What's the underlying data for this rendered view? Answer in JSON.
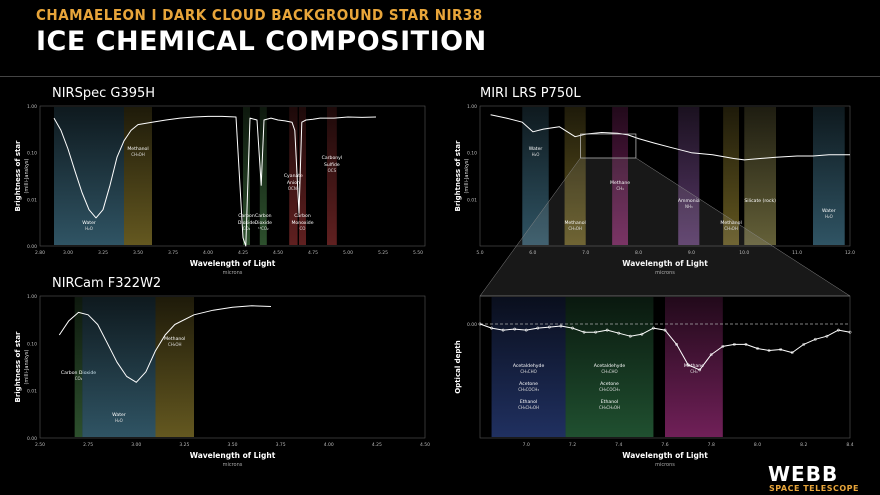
{
  "header": {
    "supertitle": "CHAMAELEON I DARK CLOUD BACKGROUND STAR NIR38",
    "title": "ICE CHEMICAL COMPOSITION"
  },
  "logo": {
    "name": "WEBB",
    "sub": "SPACE TELESCOPE"
  },
  "colors": {
    "water": "#5fa8c8",
    "methane": "#c8b040",
    "co2": "#5aa05a",
    "ammonia": "#b070d0",
    "silicate": "#c8c070",
    "red": "#c04040",
    "pink": "#e040b0",
    "blue": "#4060c0",
    "green": "#40a060"
  },
  "chart_data": [
    {
      "id": "nirspec",
      "type": "line",
      "title": "NIRSpec G395H",
      "xlabel": "Wavelength of Light",
      "xunit": "microns",
      "ylabel": "Brightness of star",
      "yunit": "(milli-Janskys)",
      "xlim": [
        2.8,
        5.55
      ],
      "ylim_log": [
        0.001,
        1
      ],
      "yscale": "log",
      "xticks": [
        "2.80",
        "3.00",
        "3.25",
        "3.50",
        "3.75",
        "4.00",
        "4.25",
        "4.50",
        "4.75",
        "5.00",
        "5.25",
        "5.50"
      ],
      "xtick_vals": [
        2.8,
        3.0,
        3.25,
        3.5,
        3.75,
        4.0,
        4.25,
        4.5,
        4.75,
        5.0,
        5.25,
        5.5
      ],
      "yticks": [
        "1.00",
        "0.10",
        "0.01",
        "0.00"
      ],
      "bands": [
        {
          "x0": 2.9,
          "x1": 3.4,
          "color": "#5fa8c8",
          "label": "Water",
          "sub": "H₂O",
          "pos": "bottom"
        },
        {
          "x0": 3.4,
          "x1": 3.6,
          "color": "#c8b040",
          "label": "Methanol",
          "sub": "CH₃OH",
          "pos": "top"
        },
        {
          "x0": 4.25,
          "x1": 4.3,
          "color": "#5aa05a",
          "label": "Carbon Dioxide",
          "sub": "CO₂",
          "pos": "bottom"
        },
        {
          "x0": 4.37,
          "x1": 4.42,
          "color": "#5aa05a",
          "label": "Carbon Dioxide",
          "sub": "¹³CO₂",
          "pos": "bottom"
        },
        {
          "x0": 4.58,
          "x1": 4.64,
          "color": "#c04040",
          "label": "Cyanate Anion",
          "sub": "OCN⁻",
          "pos": "mid"
        },
        {
          "x0": 4.65,
          "x1": 4.7,
          "color": "#c04040",
          "label": "Carbon Monoxide",
          "sub": "CO",
          "pos": "bottom"
        },
        {
          "x0": 4.85,
          "x1": 4.92,
          "color": "#c04040",
          "label": "Carbonyl Sulfide",
          "sub": "OCS",
          "pos": "upper"
        }
      ],
      "series": [
        {
          "x": [
            2.9,
            2.95,
            3.0,
            3.05,
            3.1,
            3.15,
            3.2,
            3.25,
            3.3,
            3.35,
            3.4,
            3.45,
            3.5,
            3.6,
            3.7,
            3.8,
            3.9,
            4.0,
            4.1,
            4.2,
            4.25,
            4.27,
            4.3,
            4.35,
            4.38,
            4.4,
            4.45,
            4.5,
            4.55,
            4.6,
            4.62,
            4.65,
            4.67,
            4.7,
            4.75,
            4.8,
            4.9,
            5.0,
            5.1,
            5.2
          ],
          "y": [
            0.55,
            0.3,
            0.12,
            0.04,
            0.014,
            0.006,
            0.004,
            0.006,
            0.02,
            0.08,
            0.18,
            0.3,
            0.4,
            0.45,
            0.5,
            0.55,
            0.58,
            0.6,
            0.6,
            0.58,
            0.0015,
            0.001,
            0.55,
            0.5,
            0.02,
            0.5,
            0.55,
            0.5,
            0.48,
            0.45,
            0.3,
            0.005,
            0.45,
            0.5,
            0.52,
            0.55,
            0.55,
            0.58,
            0.57,
            0.58
          ]
        }
      ]
    },
    {
      "id": "nircam",
      "type": "line",
      "title": "NIRCam F322W2",
      "xlabel": "Wavelength of Light",
      "xunit": "microns",
      "ylabel": "Brightness of star",
      "yunit": "(milli-Janskys)",
      "xlim": [
        2.5,
        4.5
      ],
      "yscale": "log",
      "xtick_vals": [
        2.5,
        2.75,
        3.0,
        3.25,
        3.5,
        3.75,
        4.0,
        4.25,
        4.5
      ],
      "xticks": [
        "2.50",
        "2.75",
        "3.00",
        "3.25",
        "3.50",
        "3.75",
        "4.00",
        "4.25",
        "4.50"
      ],
      "yticks": [
        "1.00",
        "0.10",
        "0.01",
        "0.00"
      ],
      "bands": [
        {
          "x0": 2.68,
          "x1": 2.72,
          "color": "#5aa05a",
          "label": "Carbon Dioxide",
          "sub": "CO₂",
          "pos": "mid"
        },
        {
          "x0": 2.72,
          "x1": 3.1,
          "color": "#5fa8c8",
          "label": "Water",
          "sub": "H₂O",
          "pos": "bottom"
        },
        {
          "x0": 3.1,
          "x1": 3.3,
          "color": "#c8b040",
          "label": "Methanol",
          "sub": "CH₃OH",
          "pos": "top"
        }
      ],
      "series": [
        {
          "x": [
            2.6,
            2.65,
            2.7,
            2.75,
            2.8,
            2.85,
            2.9,
            2.95,
            3.0,
            3.05,
            3.1,
            3.15,
            3.2,
            3.3,
            3.4,
            3.5,
            3.6,
            3.7
          ],
          "y": [
            0.15,
            0.3,
            0.45,
            0.4,
            0.25,
            0.1,
            0.04,
            0.02,
            0.015,
            0.025,
            0.07,
            0.15,
            0.25,
            0.4,
            0.5,
            0.58,
            0.62,
            0.6
          ]
        }
      ]
    },
    {
      "id": "miri",
      "type": "line",
      "title": "MIRI LRS P750L",
      "xlabel": "Wavelength of Light",
      "xunit": "microns",
      "ylabel": "Brightness of star",
      "yunit": "(milli-Janskys)",
      "xlim": [
        5,
        12
      ],
      "yscale": "log",
      "xtick_vals": [
        5,
        5.5,
        6,
        6.5,
        7,
        7.5,
        8,
        8.5,
        9,
        9.5,
        10,
        10.5,
        11,
        11.5,
        12
      ],
      "xticks": [
        "5.0",
        "",
        "6.0",
        "",
        "7.0",
        "",
        "8.0",
        "",
        "9.0",
        "",
        "10.0",
        "",
        "11.0",
        "",
        "12.0"
      ],
      "yticks": [
        "1.00",
        "0.10",
        "0.01"
      ],
      "bands": [
        {
          "x0": 5.8,
          "x1": 6.3,
          "color": "#5fa8c8",
          "label": "Water",
          "sub": "H₂O",
          "pos": "top"
        },
        {
          "x0": 6.6,
          "x1": 7.0,
          "color": "#c8b040",
          "label": "Methanol",
          "sub": "CH₃OH",
          "pos": "bottom"
        },
        {
          "x0": 7.5,
          "x1": 7.8,
          "color": "#e040b0",
          "label": "Methane",
          "sub": "CH₄",
          "pos": "mid"
        },
        {
          "x0": 8.75,
          "x1": 9.15,
          "color": "#b070d0",
          "label": "Ammonia",
          "sub": "NH₃",
          "pos": "mid2"
        },
        {
          "x0": 9.6,
          "x1": 9.9,
          "color": "#c8b040",
          "label": "Methanol",
          "sub": "CH₃OH",
          "pos": "bottom"
        },
        {
          "x0": 10.0,
          "x1": 10.6,
          "color": "#c8c070",
          "label": "Silicate (rock)",
          "sub": "",
          "pos": "mid2"
        },
        {
          "x0": 11.3,
          "x1": 11.9,
          "color": "#5fa8c8",
          "label": "Water",
          "sub": "H₂O",
          "pos": "mid3"
        }
      ],
      "series": [
        {
          "x": [
            5.2,
            5.5,
            5.8,
            6.0,
            6.2,
            6.5,
            6.8,
            7.0,
            7.3,
            7.6,
            7.8,
            8.0,
            8.3,
            8.6,
            9.0,
            9.4,
            9.8,
            10.0,
            10.3,
            10.6,
            11.0,
            11.3,
            11.6,
            12.0
          ],
          "y": [
            0.65,
            0.55,
            0.45,
            0.28,
            0.32,
            0.36,
            0.22,
            0.25,
            0.27,
            0.26,
            0.24,
            0.2,
            0.16,
            0.13,
            0.1,
            0.09,
            0.075,
            0.07,
            0.075,
            0.08,
            0.085,
            0.085,
            0.09,
            0.09
          ]
        }
      ]
    },
    {
      "id": "miri-zoom",
      "type": "line",
      "xlabel": "Wavelength of Light",
      "xunit": "microns",
      "ylabel": "Optical depth",
      "xlim": [
        6.8,
        8.4
      ],
      "ylim": [
        0,
        0.1
      ],
      "xtick_vals": [
        7.0,
        7.2,
        7.4,
        7.6,
        7.8,
        8.0,
        8.2,
        8.4
      ],
      "xticks": [
        "7.0",
        "7.2",
        "7.4",
        "7.6",
        "7.8",
        "8.0",
        "8.2",
        "8.4"
      ],
      "yticks": [
        "0.00"
      ],
      "bands": [
        {
          "x0": 6.85,
          "x1": 7.17,
          "color": "#4060c0",
          "label": "Acetaldehyde",
          "sub": "CH₃CHO",
          "label2": "Acetone",
          "sub2": "CH₃COCH₃",
          "label3": "Ethanol",
          "sub3": "CH₃CH₂OH"
        },
        {
          "x0": 7.17,
          "x1": 7.55,
          "color": "#40a060",
          "label": "Acetaldehyde",
          "sub": "CH₃CHO",
          "label2": "Acetone",
          "sub2": "CH₃COCH₃",
          "label3": "Ethanol",
          "sub3": "CH₃CH₂OH"
        },
        {
          "x0": 7.6,
          "x1": 7.85,
          "color": "#e040b0",
          "label": "Methane",
          "sub": "CH₄"
        }
      ],
      "series": [
        {
          "x": [
            6.8,
            6.85,
            6.9,
            6.95,
            7.0,
            7.05,
            7.1,
            7.15,
            7.2,
            7.25,
            7.3,
            7.35,
            7.4,
            7.45,
            7.5,
            7.55,
            7.6,
            7.65,
            7.7,
            7.75,
            7.8,
            7.85,
            7.9,
            7.95,
            8.0,
            8.05,
            8.1,
            8.15,
            8.2,
            8.25,
            8.3,
            8.35,
            8.4
          ],
          "y": [
            0.0,
            0.004,
            0.006,
            0.005,
            0.006,
            0.004,
            0.003,
            0.002,
            0.004,
            0.008,
            0.008,
            0.006,
            0.009,
            0.012,
            0.01,
            0.004,
            0.006,
            0.02,
            0.04,
            0.045,
            0.03,
            0.022,
            0.02,
            0.02,
            0.024,
            0.026,
            0.025,
            0.028,
            0.02,
            0.015,
            0.012,
            0.006,
            0.008
          ]
        }
      ]
    }
  ]
}
